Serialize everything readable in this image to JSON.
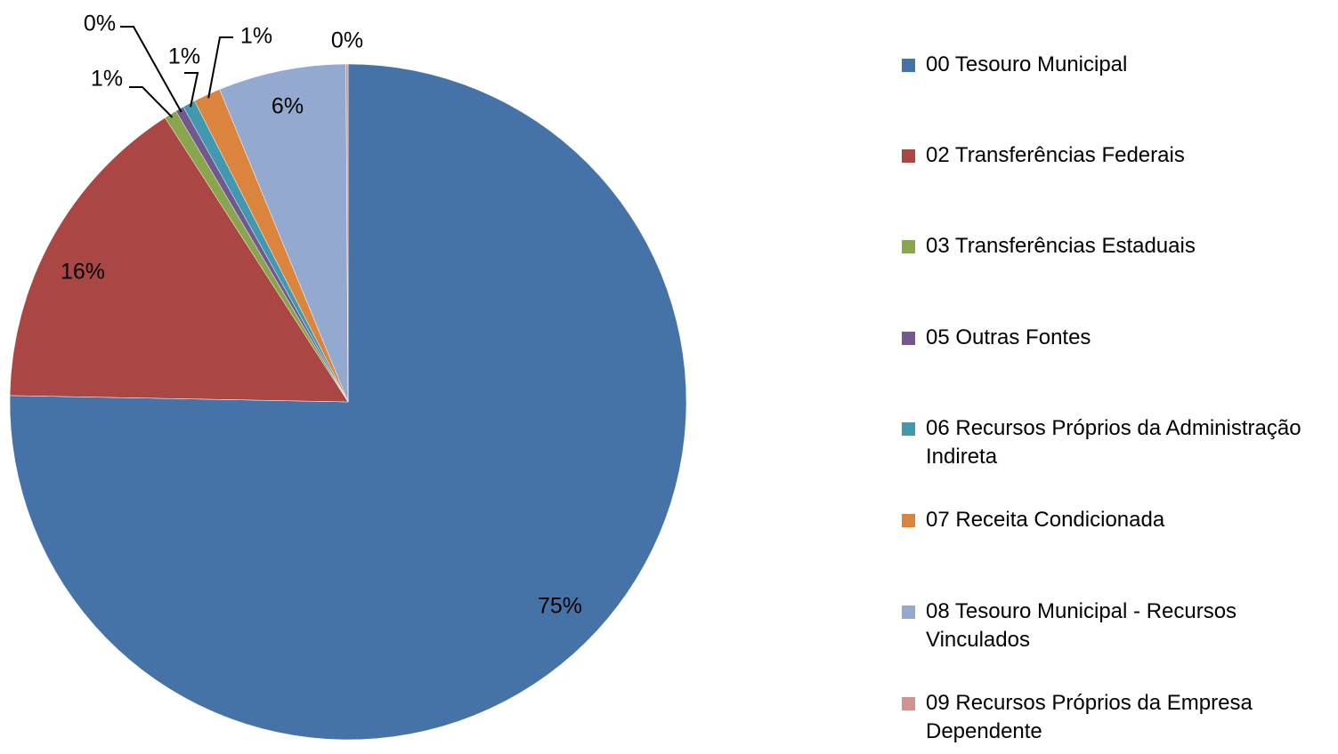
{
  "chart_data": {
    "type": "pie",
    "categories": [
      "00 Tesouro Municipal",
      "02 Transferências Federais",
      "03 Transferências Estaduais",
      "05 Outras Fontes",
      "06 Recursos Próprios da Administração Indireta",
      "07 Receita Condicionada",
      "08 Tesouro Municipal - Recursos Vinculados",
      "09 Recursos Próprios da Empresa Dependente"
    ],
    "values": [
      75.3,
      15.6,
      0.6,
      0.4,
      0.6,
      1.3,
      6.1,
      0.1
    ],
    "value_labels": [
      "75%",
      "16%",
      "1%",
      "0%",
      "1%",
      "1%",
      "6%",
      "0%"
    ],
    "colors": [
      "#4572a7",
      "#aa4643",
      "#89a54e",
      "#71588f",
      "#4198af",
      "#db843d",
      "#93a9cf",
      "#d19392"
    ]
  }
}
